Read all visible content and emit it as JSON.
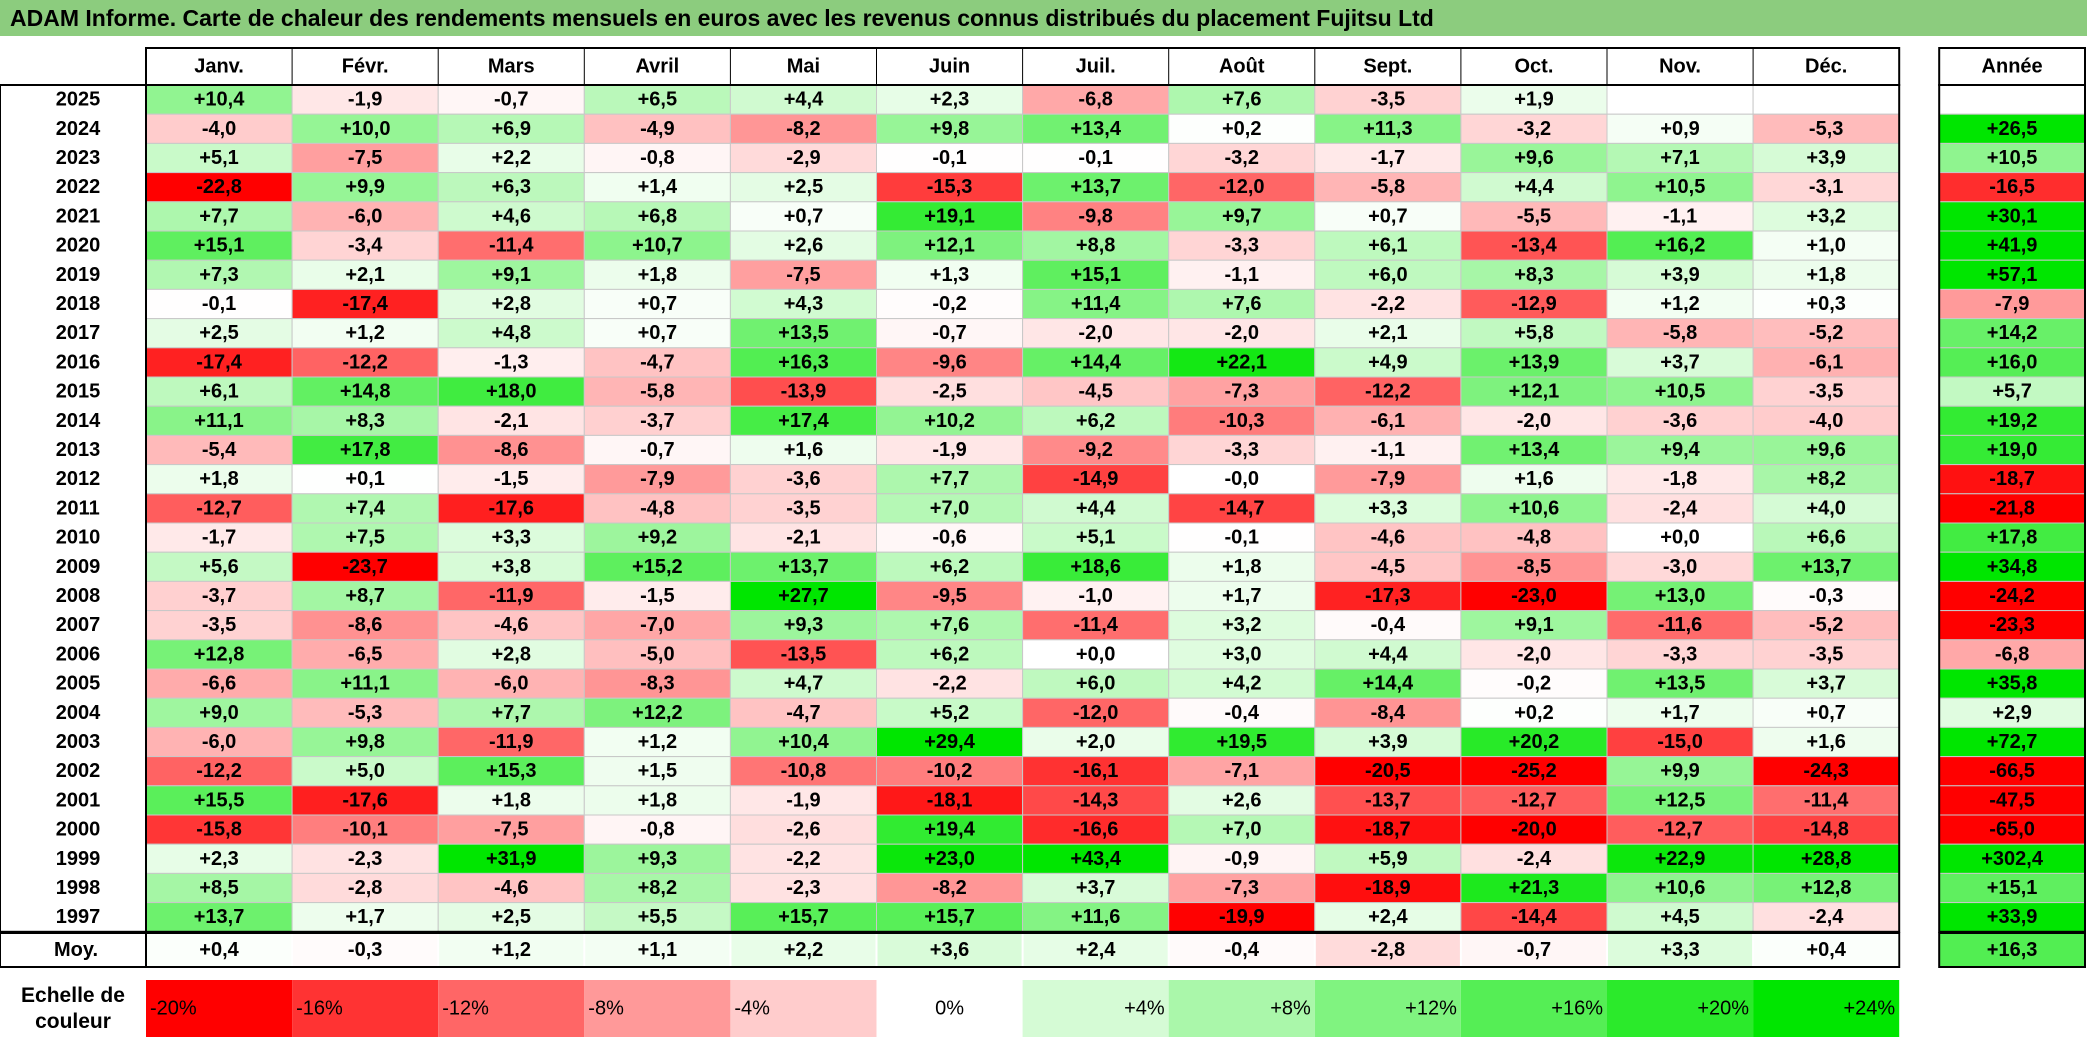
{
  "title": "ADAM Informe. Carte de chaleur des rendements mensuels en euros avec les revenus connus distribués du placement Fujitsu Ltd",
  "chart_data": {
    "type": "heatmap",
    "months": [
      "Janv.",
      "Févr.",
      "Mars",
      "Avril",
      "Mai",
      "Juin",
      "Juil.",
      "Août",
      "Sept.",
      "Oct.",
      "Nov.",
      "Déc."
    ],
    "year_header": "Année",
    "rows": [
      {
        "year": "2025",
        "values": [
          "+10,4",
          "-1,9",
          "-0,7",
          "+6,5",
          "+4,4",
          "+2,3",
          "-6,8",
          "+7,6",
          "-3,5",
          "+1,9",
          "",
          ""
        ],
        "annual": ""
      },
      {
        "year": "2024",
        "values": [
          "-4,0",
          "+10,0",
          "+6,9",
          "-4,9",
          "-8,2",
          "+9,8",
          "+13,4",
          "+0,2",
          "+11,3",
          "-3,2",
          "+0,9",
          "-5,3"
        ],
        "annual": "+26,5"
      },
      {
        "year": "2023",
        "values": [
          "+5,1",
          "-7,5",
          "+2,2",
          "-0,8",
          "-2,9",
          "-0,1",
          "-0,1",
          "-3,2",
          "-1,7",
          "+9,6",
          "+7,1",
          "+3,9"
        ],
        "annual": "+10,5"
      },
      {
        "year": "2022",
        "values": [
          "-22,8",
          "+9,9",
          "+6,3",
          "+1,4",
          "+2,5",
          "-15,3",
          "+13,7",
          "-12,0",
          "-5,8",
          "+4,4",
          "+10,5",
          "-3,1"
        ],
        "annual": "-16,5"
      },
      {
        "year": "2021",
        "values": [
          "+7,7",
          "-6,0",
          "+4,6",
          "+6,8",
          "+0,7",
          "+19,1",
          "-9,8",
          "+9,7",
          "+0,7",
          "-5,5",
          "-1,1",
          "+3,2"
        ],
        "annual": "+30,1"
      },
      {
        "year": "2020",
        "values": [
          "+15,1",
          "-3,4",
          "-11,4",
          "+10,7",
          "+2,6",
          "+12,1",
          "+8,8",
          "-3,3",
          "+6,1",
          "-13,4",
          "+16,2",
          "+1,0"
        ],
        "annual": "+41,9"
      },
      {
        "year": "2019",
        "values": [
          "+7,3",
          "+2,1",
          "+9,1",
          "+1,8",
          "-7,5",
          "+1,3",
          "+15,1",
          "-1,1",
          "+6,0",
          "+8,3",
          "+3,9",
          "+1,8"
        ],
        "annual": "+57,1"
      },
      {
        "year": "2018",
        "values": [
          "-0,1",
          "-17,4",
          "+2,8",
          "+0,7",
          "+4,3",
          "-0,2",
          "+11,4",
          "+7,6",
          "-2,2",
          "-12,9",
          "+1,2",
          "+0,3"
        ],
        "annual": "-7,9"
      },
      {
        "year": "2017",
        "values": [
          "+2,5",
          "+1,2",
          "+4,8",
          "+0,7",
          "+13,5",
          "-0,7",
          "-2,0",
          "-2,0",
          "+2,1",
          "+5,8",
          "-5,8",
          "-5,2"
        ],
        "annual": "+14,2"
      },
      {
        "year": "2016",
        "values": [
          "-17,4",
          "-12,2",
          "-1,3",
          "-4,7",
          "+16,3",
          "-9,6",
          "+14,4",
          "+22,1",
          "+4,9",
          "+13,9",
          "+3,7",
          "-6,1"
        ],
        "annual": "+16,0"
      },
      {
        "year": "2015",
        "values": [
          "+6,1",
          "+14,8",
          "+18,0",
          "-5,8",
          "-13,9",
          "-2,5",
          "-4,5",
          "-7,3",
          "-12,2",
          "+12,1",
          "+10,5",
          "-3,5"
        ],
        "annual": "+5,7"
      },
      {
        "year": "2014",
        "values": [
          "+11,1",
          "+8,3",
          "-2,1",
          "-3,7",
          "+17,4",
          "+10,2",
          "+6,2",
          "-10,3",
          "-6,1",
          "-2,0",
          "-3,6",
          "-4,0"
        ],
        "annual": "+19,2"
      },
      {
        "year": "2013",
        "values": [
          "-5,4",
          "+17,8",
          "-8,6",
          "-0,7",
          "+1,6",
          "-1,9",
          "-9,2",
          "-3,3",
          "-1,1",
          "+13,4",
          "+9,4",
          "+9,6"
        ],
        "annual": "+19,0"
      },
      {
        "year": "2012",
        "values": [
          "+1,8",
          "+0,1",
          "-1,5",
          "-7,9",
          "-3,6",
          "+7,7",
          "-14,9",
          "-0,0",
          "-7,9",
          "+1,6",
          "-1,8",
          "+8,2"
        ],
        "annual": "-18,7"
      },
      {
        "year": "2011",
        "values": [
          "-12,7",
          "+7,4",
          "-17,6",
          "-4,8",
          "-3,5",
          "+7,0",
          "+4,4",
          "-14,7",
          "+3,3",
          "+10,6",
          "-2,4",
          "+4,0"
        ],
        "annual": "-21,8"
      },
      {
        "year": "2010",
        "values": [
          "-1,7",
          "+7,5",
          "+3,3",
          "+9,2",
          "-2,1",
          "-0,6",
          "+5,1",
          "-0,1",
          "-4,6",
          "-4,8",
          "+0,0",
          "+6,6"
        ],
        "annual": "+17,8"
      },
      {
        "year": "2009",
        "values": [
          "+5,6",
          "-23,7",
          "+3,8",
          "+15,2",
          "+13,7",
          "+6,2",
          "+18,6",
          "+1,8",
          "-4,5",
          "-8,5",
          "-3,0",
          "+13,7"
        ],
        "annual": "+34,8"
      },
      {
        "year": "2008",
        "values": [
          "-3,7",
          "+8,7",
          "-11,9",
          "-1,5",
          "+27,7",
          "-9,5",
          "-1,0",
          "+1,7",
          "-17,3",
          "-23,0",
          "+13,0",
          "-0,3"
        ],
        "annual": "-24,2"
      },
      {
        "year": "2007",
        "values": [
          "-3,5",
          "-8,6",
          "-4,6",
          "-7,0",
          "+9,3",
          "+7,6",
          "-11,4",
          "+3,2",
          "-0,4",
          "+9,1",
          "-11,6",
          "-5,2"
        ],
        "annual": "-23,3"
      },
      {
        "year": "2006",
        "values": [
          "+12,8",
          "-6,5",
          "+2,8",
          "-5,0",
          "-13,5",
          "+6,2",
          "+0,0",
          "+3,0",
          "+4,4",
          "-2,0",
          "-3,3",
          "-3,5"
        ],
        "annual": "-6,8"
      },
      {
        "year": "2005",
        "values": [
          "-6,6",
          "+11,1",
          "-6,0",
          "-8,3",
          "+4,7",
          "-2,2",
          "+6,0",
          "+4,2",
          "+14,4",
          "-0,2",
          "+13,5",
          "+3,7"
        ],
        "annual": "+35,8"
      },
      {
        "year": "2004",
        "values": [
          "+9,0",
          "-5,3",
          "+7,7",
          "+12,2",
          "-4,7",
          "+5,2",
          "-12,0",
          "-0,4",
          "-8,4",
          "+0,2",
          "+1,7",
          "+0,7"
        ],
        "annual": "+2,9"
      },
      {
        "year": "2003",
        "values": [
          "-6,0",
          "+9,8",
          "-11,9",
          "+1,2",
          "+10,4",
          "+29,4",
          "+2,0",
          "+19,5",
          "+3,9",
          "+20,2",
          "-15,0",
          "+1,6"
        ],
        "annual": "+72,7"
      },
      {
        "year": "2002",
        "values": [
          "-12,2",
          "+5,0",
          "+15,3",
          "+1,5",
          "-10,8",
          "-10,2",
          "-16,1",
          "-7,1",
          "-20,5",
          "-25,2",
          "+9,9",
          "-24,3"
        ],
        "annual": "-66,5"
      },
      {
        "year": "2001",
        "values": [
          "+15,5",
          "-17,6",
          "+1,8",
          "+1,8",
          "-1,9",
          "-18,1",
          "-14,3",
          "+2,6",
          "-13,7",
          "-12,7",
          "+12,5",
          "-11,4"
        ],
        "annual": "-47,5"
      },
      {
        "year": "2000",
        "values": [
          "-15,8",
          "-10,1",
          "-7,5",
          "-0,8",
          "-2,6",
          "+19,4",
          "-16,6",
          "+7,0",
          "-18,7",
          "-20,0",
          "-12,7",
          "-14,8"
        ],
        "annual": "-65,0"
      },
      {
        "year": "1999",
        "values": [
          "+2,3",
          "-2,3",
          "+31,9",
          "+9,3",
          "-2,2",
          "+23,0",
          "+43,4",
          "-0,9",
          "+5,9",
          "-2,4",
          "+22,9",
          "+28,8"
        ],
        "annual": "+302,4"
      },
      {
        "year": "1998",
        "values": [
          "+8,5",
          "-2,8",
          "-4,6",
          "+8,2",
          "-2,3",
          "-8,2",
          "+3,7",
          "-7,3",
          "-18,9",
          "+21,3",
          "+10,6",
          "+12,8"
        ],
        "annual": "+15,1"
      },
      {
        "year": "1997",
        "values": [
          "+13,7",
          "+1,7",
          "+2,5",
          "+5,5",
          "+15,7",
          "+15,7",
          "+11,6",
          "-19,9",
          "+2,4",
          "-14,4",
          "+4,5",
          "-2,4"
        ],
        "annual": "+33,9"
      }
    ],
    "average": {
      "label": "Moy.",
      "values": [
        "+0,4",
        "-0,3",
        "+1,2",
        "+1,1",
        "+2,2",
        "+3,6",
        "+2,4",
        "-0,4",
        "-2,8",
        "-0,7",
        "+3,3",
        "+0,4"
      ],
      "annual": "+16,3"
    },
    "legend": {
      "title_line1": "Echelle de",
      "title_line2": "couleur",
      "stops": [
        "-20%",
        "-16%",
        "-12%",
        "-8%",
        "-4%",
        "0%",
        "+4%",
        "+8%",
        "+12%",
        "+16%",
        "+20%",
        "+24%"
      ]
    },
    "colors": {
      "negative_max": "#ff0000",
      "neutral": "#ffffff",
      "positive_max": "#00e600",
      "title_bg": "#8ccc7e"
    }
  }
}
